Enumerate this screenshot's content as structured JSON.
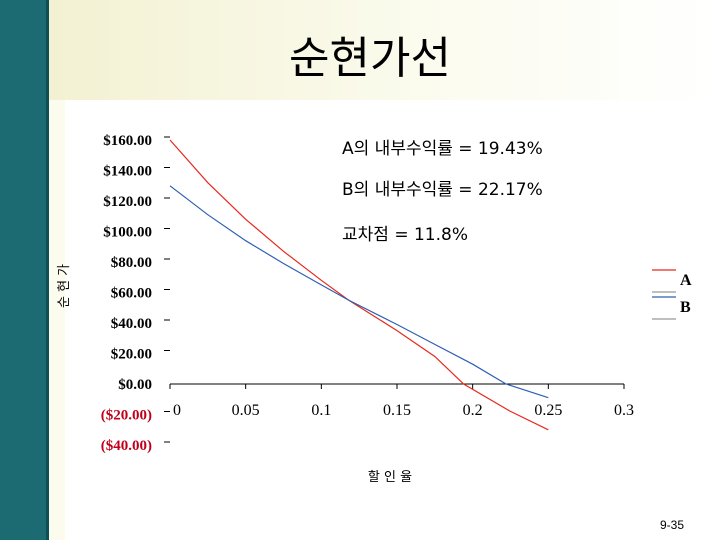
{
  "title": "순현가선",
  "page_number": "9-35",
  "annotations": [
    "A의 내부수익률 = 19.43%",
    "B의 내부수익률 = 22.17%",
    "교차점 = 11.8%"
  ],
  "colors": {
    "A": "#e8291c",
    "B": "#2e5fb5",
    "negative_label": "#c0001a",
    "sidebar": "#1c6b72"
  },
  "chart_data": {
    "type": "line",
    "xlabel": "할 인 율",
    "ylabel": "순 현 가",
    "x_ticks": [
      0,
      0.05,
      0.1,
      0.15,
      0.2,
      0.25,
      0.3
    ],
    "x_tick_labels": [
      "0",
      "0.05",
      "0.1",
      "0.15",
      "0.2",
      "0.25",
      "0.3"
    ],
    "y_ticks": [
      160,
      140,
      120,
      100,
      80,
      60,
      40,
      20,
      0,
      -20,
      -40
    ],
    "y_tick_labels": [
      "$160.00",
      "$140.00",
      "$120.00",
      "$100.00",
      "$80.00",
      "$60.00",
      "$40.00",
      "$20.00",
      "$0.00",
      "($20.00)",
      "($40.00)"
    ],
    "ylim": [
      -40,
      160
    ],
    "xlim": [
      0,
      0.3
    ],
    "legend": "right",
    "series": [
      {
        "name": "A",
        "x": [
          0,
          0.025,
          0.05,
          0.075,
          0.1,
          0.118,
          0.15,
          0.175,
          0.194,
          0.225,
          0.25
        ],
        "y": [
          160,
          132,
          108,
          87,
          68,
          55,
          35,
          18,
          0,
          -18,
          -30
        ]
      },
      {
        "name": "B",
        "x": [
          0,
          0.025,
          0.05,
          0.075,
          0.1,
          0.118,
          0.15,
          0.175,
          0.2,
          0.222,
          0.25
        ],
        "y": [
          130,
          111,
          94,
          79,
          65,
          55,
          39,
          26,
          13,
          0,
          -9
        ]
      }
    ]
  }
}
